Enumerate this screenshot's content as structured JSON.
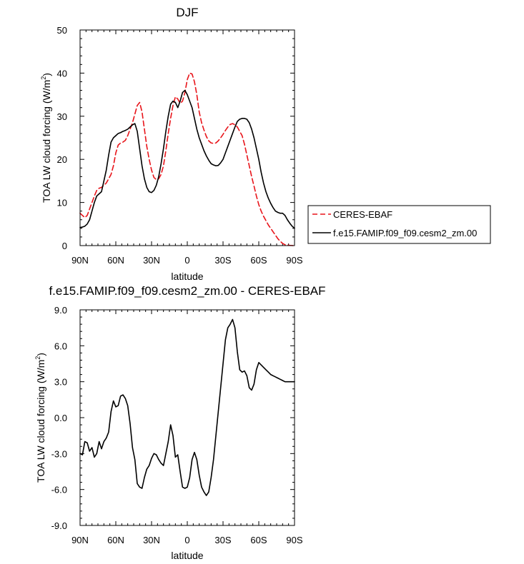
{
  "chart_data": [
    {
      "type": "line",
      "title": "DJF",
      "xlabel": "latitude",
      "ylabel": "TOA LW cloud forcing (W/m",
      "ylabel_sup": "2",
      "ylabel_close": ")",
      "xlim": [
        90,
        -90
      ],
      "ylim": [
        0,
        50
      ],
      "x_ticks": [
        90,
        60,
        30,
        0,
        -30,
        -60,
        -90
      ],
      "x_tick_labels": [
        "90N",
        "60N",
        "30N",
        "0",
        "30S",
        "60S",
        "90S"
      ],
      "y_ticks": [
        0,
        10,
        20,
        30,
        40,
        50
      ],
      "y_tick_labels": [
        "0",
        "10",
        "20",
        "30",
        "40",
        "50"
      ],
      "legend": "right",
      "series": [
        {
          "name": "CERES-EBAF",
          "color": "#e8141a",
          "dash": "dashed",
          "x": [
            90,
            88,
            86,
            84,
            82,
            80,
            78,
            76,
            74,
            72,
            70,
            68,
            66,
            64,
            62,
            60,
            58,
            56,
            54,
            52,
            50,
            48,
            46,
            44,
            42,
            40,
            38,
            36,
            34,
            32,
            30,
            28,
            26,
            24,
            22,
            20,
            18,
            16,
            14,
            12,
            10,
            8,
            6,
            4,
            2,
            0,
            -2,
            -4,
            -6,
            -8,
            -10,
            -12,
            -14,
            -16,
            -18,
            -20,
            -22,
            -24,
            -26,
            -28,
            -30,
            -32,
            -34,
            -36,
            -38,
            -40,
            -42,
            -44,
            -46,
            -48,
            -50,
            -52,
            -54,
            -56,
            -58,
            -60,
            -62,
            -64,
            -66,
            -68,
            -70,
            -72,
            -74,
            -76,
            -78,
            -80,
            -82,
            -84,
            -86,
            -88,
            -90
          ],
          "y": [
            7.5,
            7.0,
            6.5,
            7.0,
            8.5,
            10.0,
            11.5,
            12.8,
            13.3,
            13.5,
            14.0,
            14.5,
            15.5,
            16.5,
            18.5,
            21.5,
            23.3,
            23.8,
            24.0,
            24.4,
            25.5,
            27.0,
            28.5,
            30.5,
            32.5,
            33.2,
            31.0,
            27.0,
            23.0,
            20.0,
            17.5,
            15.8,
            15.3,
            15.5,
            16.5,
            18.5,
            22.0,
            26.0,
            29.5,
            32.5,
            34.5,
            34.0,
            33.0,
            33.5,
            35.5,
            38.5,
            40.0,
            39.8,
            38.0,
            35.0,
            31.0,
            28.5,
            26.8,
            25.3,
            24.3,
            23.8,
            23.7,
            23.8,
            24.3,
            25.0,
            25.8,
            26.7,
            27.5,
            28.1,
            28.3,
            28.0,
            27.5,
            26.5,
            25.5,
            23.5,
            21.0,
            18.5,
            16.0,
            13.8,
            11.5,
            9.5,
            8.0,
            6.8,
            5.8,
            4.8,
            4.0,
            3.2,
            2.4,
            1.6,
            1.0,
            0.5,
            0.2,
            0.1,
            0.05,
            0.02,
            0.0
          ]
        },
        {
          "name": "f.e15.FAMIP.f09_f09.cesm2_zm.00",
          "color": "#000000",
          "dash": "solid",
          "x": [
            90,
            88,
            86,
            84,
            82,
            80,
            78,
            76,
            74,
            72,
            70,
            68,
            66,
            64,
            62,
            60,
            58,
            56,
            54,
            52,
            50,
            48,
            46,
            44,
            42,
            40,
            38,
            36,
            34,
            32,
            30,
            28,
            26,
            24,
            22,
            20,
            18,
            16,
            14,
            12,
            10,
            8,
            6,
            4,
            2,
            0,
            -2,
            -4,
            -6,
            -8,
            -10,
            -12,
            -14,
            -16,
            -18,
            -20,
            -22,
            -24,
            -26,
            -28,
            -30,
            -32,
            -34,
            -36,
            -38,
            -40,
            -42,
            -44,
            -46,
            -48,
            -50,
            -52,
            -54,
            -56,
            -58,
            -60,
            -62,
            -64,
            -66,
            -68,
            -70,
            -72,
            -74,
            -76,
            -78,
            -80,
            -82,
            -84,
            -86,
            -88,
            -90
          ],
          "y": [
            4.2,
            4.3,
            4.5,
            5.0,
            6.0,
            8.0,
            10.0,
            11.5,
            12.0,
            12.5,
            15.0,
            17.5,
            21.0,
            24.0,
            25.0,
            25.5,
            26.0,
            26.2,
            26.5,
            26.7,
            27.0,
            27.5,
            28.0,
            28.3,
            26.5,
            22.5,
            18.5,
            15.5,
            13.5,
            12.5,
            12.3,
            12.8,
            14.0,
            16.0,
            19.0,
            22.5,
            26.5,
            30.0,
            32.8,
            33.5,
            33.2,
            32.0,
            33.5,
            35.5,
            36.0,
            35.0,
            33.5,
            32.0,
            29.5,
            27.0,
            25.0,
            23.5,
            22.0,
            20.8,
            19.8,
            19.0,
            18.7,
            18.5,
            18.6,
            19.2,
            20.0,
            21.5,
            23.0,
            24.5,
            26.0,
            27.5,
            28.8,
            29.3,
            29.5,
            29.5,
            29.3,
            28.5,
            27.0,
            25.0,
            22.5,
            20.0,
            17.0,
            14.5,
            12.5,
            11.0,
            9.8,
            8.8,
            8.0,
            7.7,
            7.5,
            7.5,
            7.0,
            6.0,
            5.2,
            4.5,
            4.0
          ]
        }
      ]
    },
    {
      "type": "line",
      "title": "f.e15.FAMIP.f09_f09.cesm2_zm.00 - CERES-EBAF",
      "xlabel": "latitude",
      "ylabel": "TOA LW cloud forcing (W/m",
      "ylabel_sup": "2",
      "ylabel_close": ")",
      "xlim": [
        90,
        -90
      ],
      "ylim": [
        -9,
        9
      ],
      "x_ticks": [
        90,
        60,
        30,
        0,
        -30,
        -60,
        -90
      ],
      "x_tick_labels": [
        "90N",
        "60N",
        "30N",
        "0",
        "30S",
        "60S",
        "90S"
      ],
      "y_ticks": [
        -9,
        -6,
        -3,
        0,
        3,
        6,
        9
      ],
      "y_tick_labels": [
        "-9.0",
        "-6.0",
        "-3.0",
        "0.0",
        "3.0",
        "6.0",
        "9.0"
      ],
      "series": [
        {
          "color": "#000000",
          "dash": "solid",
          "x": [
            90,
            88,
            86,
            84,
            82,
            80,
            78,
            76,
            74,
            72,
            70,
            68,
            66,
            64,
            62,
            60,
            58,
            56,
            54,
            52,
            50,
            48,
            46,
            44,
            42,
            40,
            38,
            36,
            34,
            32,
            30,
            28,
            26,
            24,
            22,
            20,
            18,
            16,
            14,
            12,
            10,
            8,
            6,
            4,
            2,
            0,
            -2,
            -4,
            -6,
            -8,
            -10,
            -12,
            -14,
            -16,
            -18,
            -20,
            -22,
            -24,
            -26,
            -28,
            -30,
            -32,
            -34,
            -36,
            -38,
            -40,
            -42,
            -44,
            -46,
            -48,
            -50,
            -52,
            -54,
            -56,
            -58,
            -60,
            -62,
            -64,
            -66,
            -68,
            -70,
            -72,
            -74,
            -76,
            -78,
            -80,
            -82,
            -84,
            -86,
            -88,
            -90
          ],
          "y": [
            -3.0,
            -3.1,
            -2.0,
            -2.1,
            -2.8,
            -2.5,
            -3.3,
            -3.0,
            -2.0,
            -2.6,
            -2.0,
            -1.7,
            -1.2,
            0.5,
            1.4,
            0.9,
            1.0,
            1.8,
            1.9,
            1.6,
            1.0,
            -0.5,
            -2.5,
            -3.5,
            -5.5,
            -5.8,
            -5.9,
            -5.0,
            -4.3,
            -4.0,
            -3.4,
            -3.0,
            -3.1,
            -3.5,
            -3.8,
            -4.0,
            -3.0,
            -2.0,
            -0.6,
            -1.5,
            -3.3,
            -3.1,
            -4.5,
            -5.8,
            -5.9,
            -5.8,
            -5.0,
            -3.5,
            -2.9,
            -3.5,
            -4.8,
            -5.8,
            -6.2,
            -6.5,
            -6.2,
            -5.0,
            -3.5,
            -1.5,
            0.5,
            2.5,
            4.5,
            6.5,
            7.5,
            7.8,
            8.2,
            7.5,
            5.5,
            4.0,
            3.8,
            3.9,
            3.5,
            2.5,
            2.3,
            2.8,
            4.0,
            4.6,
            4.4,
            4.2,
            4.0,
            3.8,
            3.6,
            3.5,
            3.4,
            3.3,
            3.2,
            3.1,
            3.0,
            3.0,
            3.0,
            3.0,
            3.0
          ]
        }
      ]
    }
  ]
}
